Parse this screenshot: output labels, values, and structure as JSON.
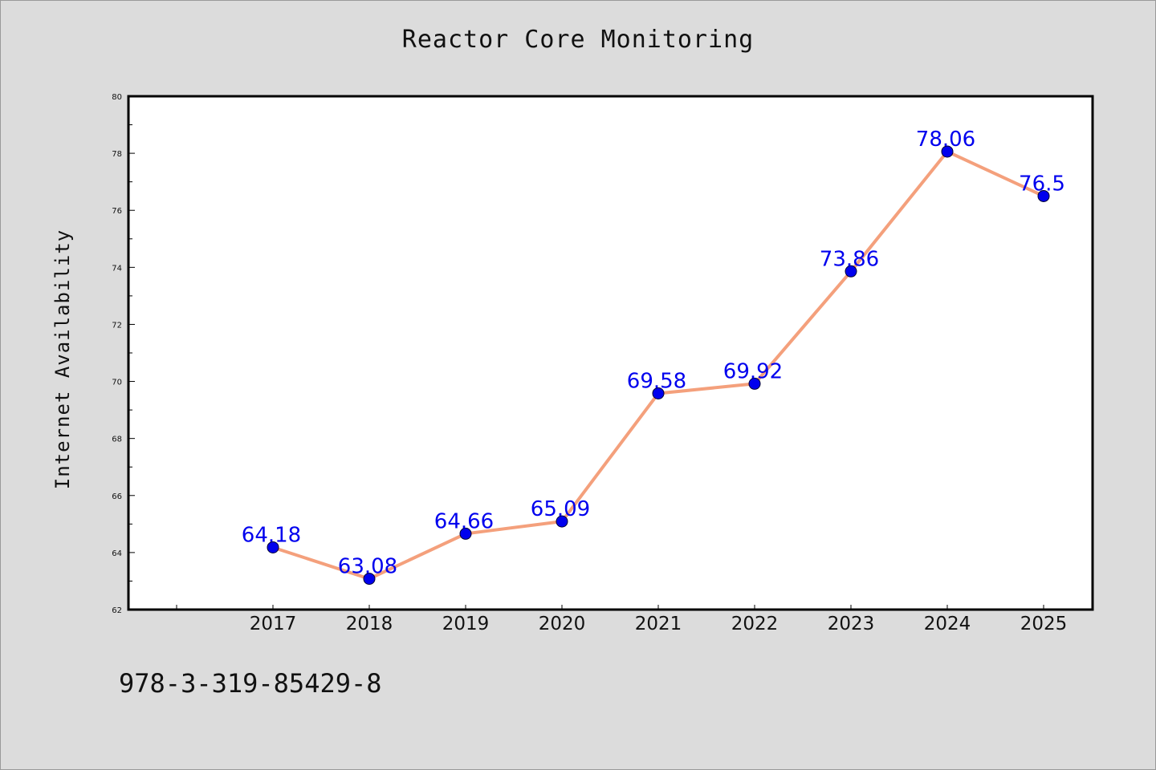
{
  "footer_text": "978-3-319-85429-8",
  "chart_data": {
    "type": "line",
    "title": "Reactor Core Monitoring",
    "xlabel": "",
    "ylabel": "Internet Availability",
    "categories": [
      "2017",
      "2018",
      "2019",
      "2020",
      "2021",
      "2022",
      "2023",
      "2024",
      "2025"
    ],
    "values": [
      64.18,
      63.08,
      64.66,
      65.09,
      69.58,
      69.92,
      73.86,
      78.06,
      76.5
    ],
    "data_labels": [
      "64.18",
      "63.08",
      "64.66",
      "65.09",
      "69.58",
      "69.92",
      "73.86",
      "78.06",
      "76.5"
    ],
    "ylim": [
      62,
      80
    ],
    "yticks": [
      "62",
      "64",
      "66",
      "68",
      "70",
      "72",
      "74",
      "76",
      "78",
      "80"
    ],
    "grid": false,
    "legend": "none",
    "colors": {
      "line": "#f4a07c",
      "marker": "#0000ee",
      "data_label": "#0000ee",
      "background": "#dcdcdc",
      "plot_background": "#ffffff"
    }
  }
}
